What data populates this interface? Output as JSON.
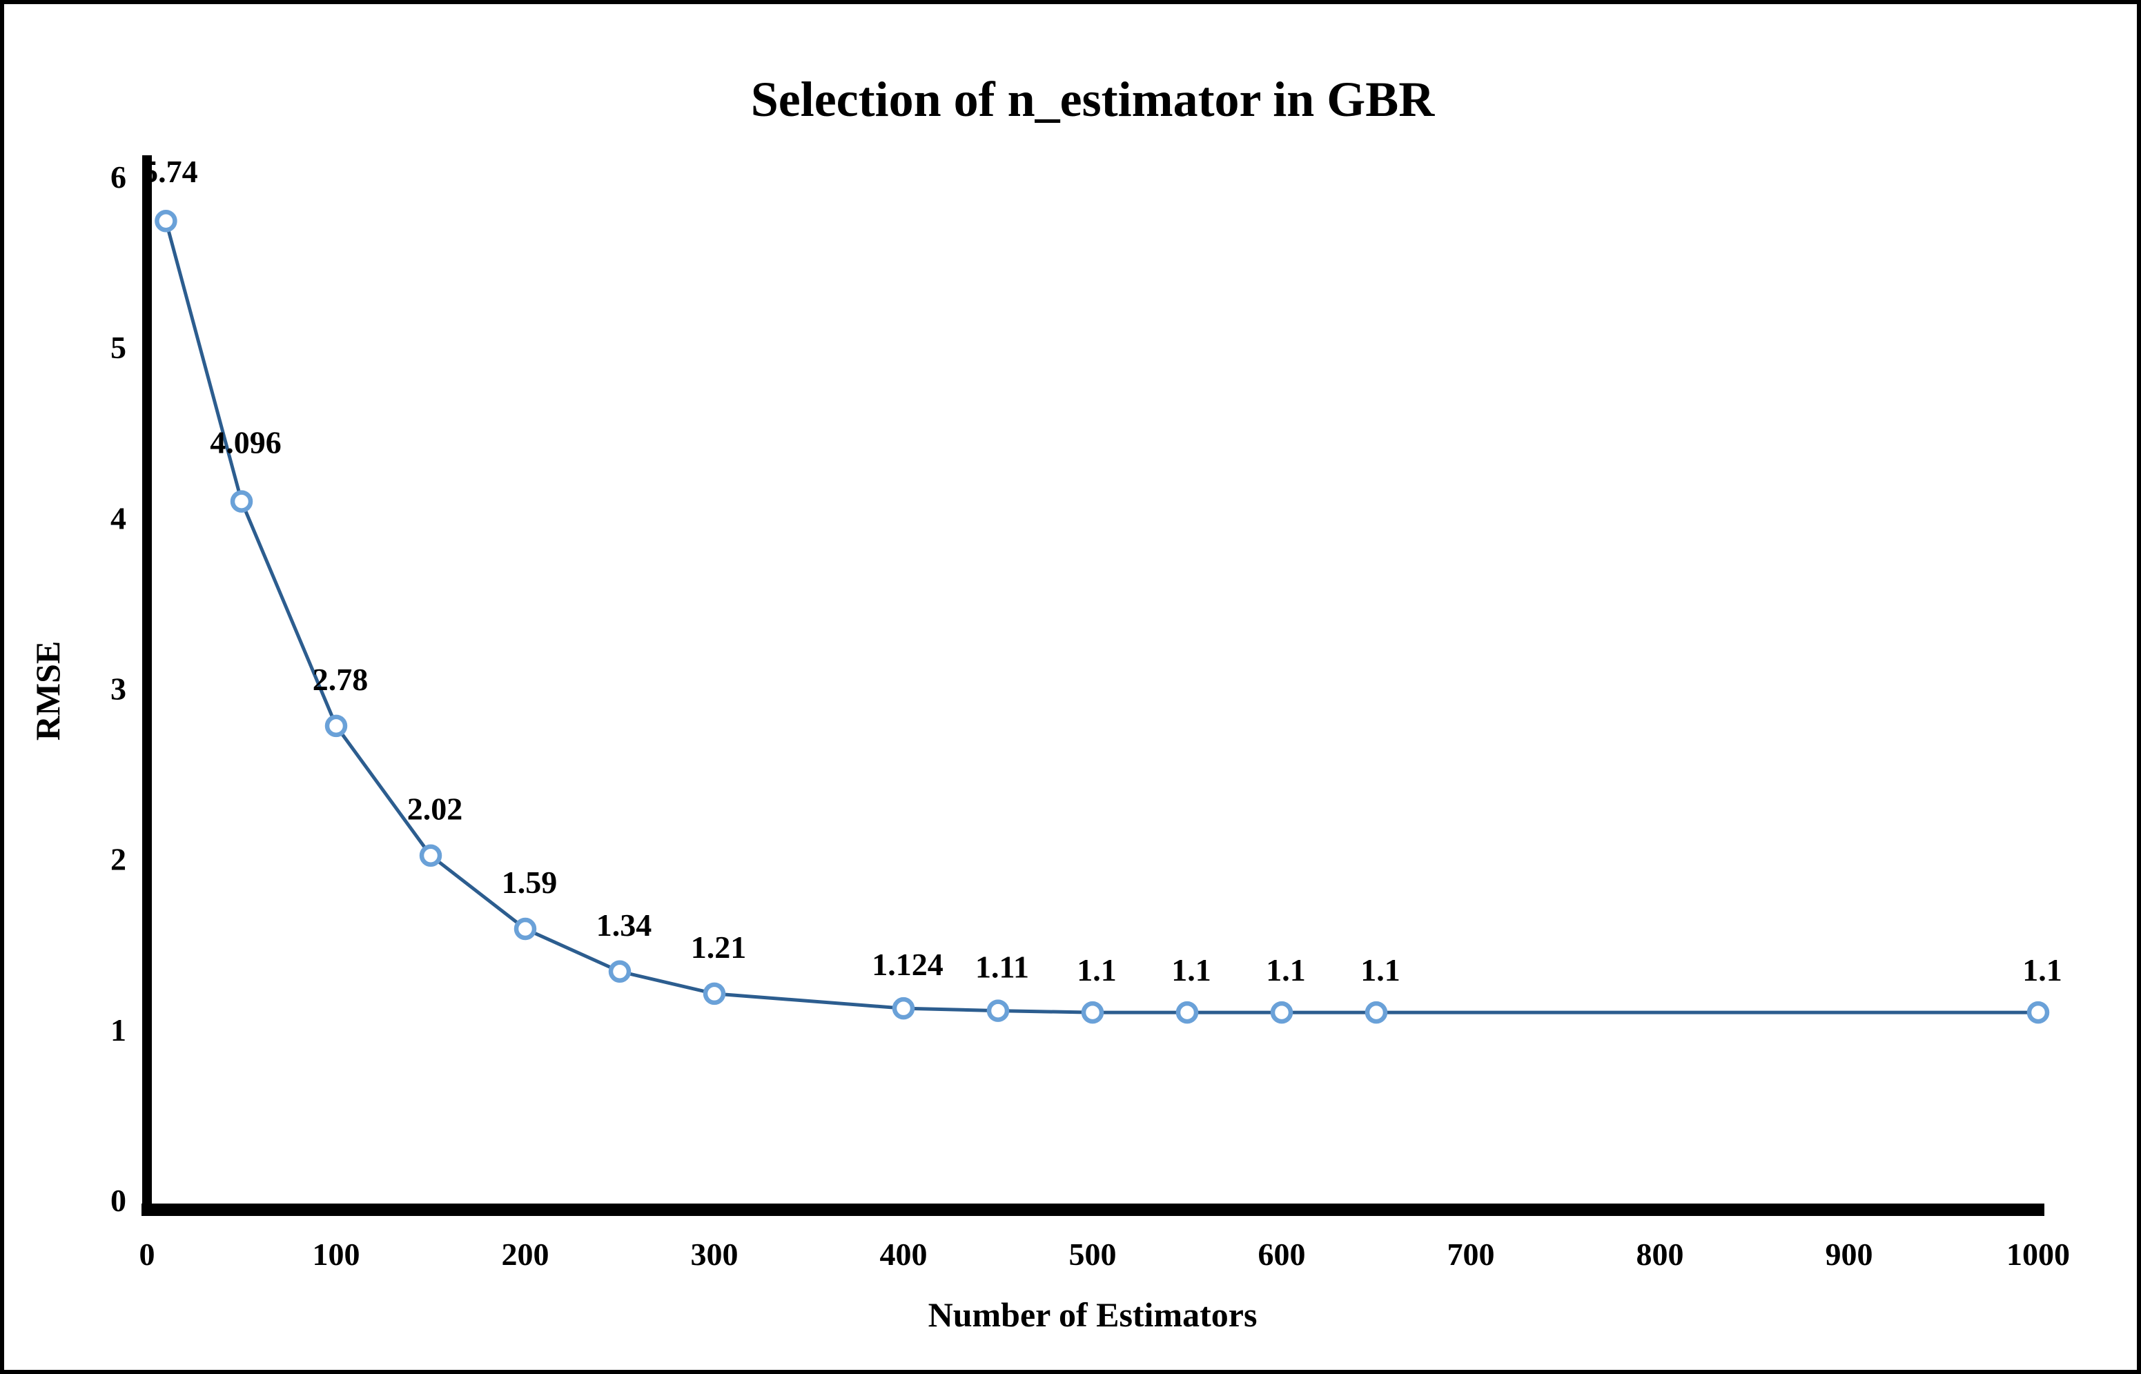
{
  "chart_data": {
    "type": "line",
    "title": "Selection of n_estimator in GBR",
    "xlabel": "Number of Estimators",
    "ylabel": "RMSE",
    "x": [
      10,
      50,
      100,
      150,
      200,
      250,
      300,
      400,
      450,
      500,
      550,
      600,
      650,
      1000
    ],
    "y": [
      5.74,
      4.096,
      2.78,
      2.02,
      1.59,
      1.34,
      1.21,
      1.124,
      1.11,
      1.1,
      1.1,
      1.1,
      1.1,
      1.1
    ],
    "point_labels": [
      "5.74",
      "4.096",
      "2.78",
      "2.02",
      "1.59",
      "1.34",
      "1.21",
      "1.124",
      "1.11",
      "1.1",
      "1.1",
      "1.1",
      "1.1",
      "1.1"
    ],
    "label_dy": [
      -56,
      -70,
      -52,
      -52,
      -52,
      -52,
      -52,
      -48,
      -48,
      -46,
      -46,
      -46,
      -46,
      -46
    ],
    "x_ticks": [
      0,
      100,
      200,
      300,
      400,
      500,
      600,
      700,
      800,
      900,
      1000
    ],
    "y_ticks": [
      0,
      1,
      2,
      3,
      4,
      5,
      6
    ],
    "xlim": [
      0,
      1000
    ],
    "ylim": [
      0,
      6
    ],
    "grid": false,
    "legend": "none",
    "marker_shape": "open-circle",
    "colors": {
      "line": "#2c5d8f",
      "marker_ring": "#6aa1d8",
      "marker_fill": "#ffffff",
      "axis": "#000000",
      "text": "#000000",
      "background": "#ffffff",
      "border": "#000000"
    }
  }
}
